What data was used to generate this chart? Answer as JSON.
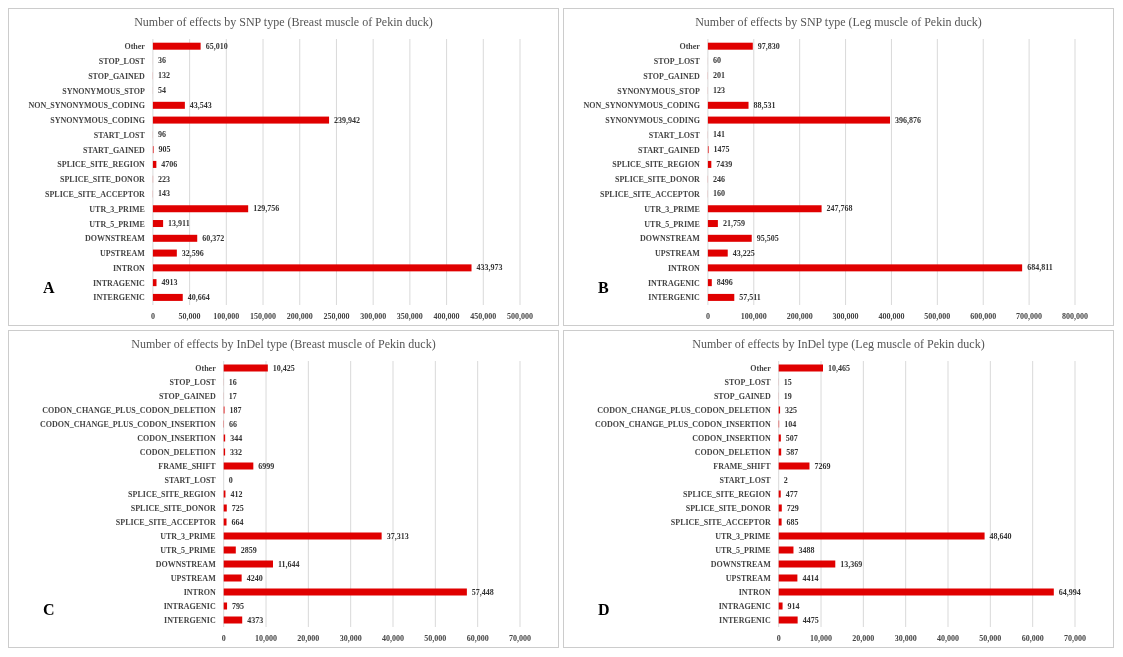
{
  "chart_data": [
    {
      "type": "bar",
      "orientation": "horizontal",
      "title": "Number of effects by SNP type (Breast muscle of Pekin duck)",
      "annotations": [
        "A"
      ],
      "categories": [
        "Other",
        "STOP_LOST",
        "STOP_GAINED",
        "SYNONYMOUS_STOP",
        "NON_SYNONYMOUS_CODING",
        "SYNONYMOUS_CODING",
        "START_LOST",
        "START_GAINED",
        "SPLICE_SITE_REGION",
        "SPLICE_SITE_DONOR",
        "SPLICE_SITE_ACCEPTOR",
        "UTR_3_PRIME",
        "UTR_5_PRIME",
        "DOWNSTREAM",
        "UPSTREAM",
        "INTRON",
        "INTRAGENIC",
        "INTERGENIC"
      ],
      "values": [
        65010,
        36,
        132,
        54,
        43543,
        239942,
        96,
        905,
        4706,
        223,
        143,
        129756,
        13911,
        60372,
        32596,
        433973,
        4913,
        40664
      ],
      "value_labels": [
        "65,010",
        "36",
        "132",
        "54",
        "43,543",
        "239,942",
        "96",
        "905",
        "4706",
        "223",
        "143",
        "129,756",
        "13,911",
        "60,372",
        "32,596",
        "433,973",
        "4913",
        "40,664"
      ],
      "color": "#e00000",
      "xlim": [
        0,
        500000
      ],
      "xticks": [
        {
          "value": 0,
          "label": "0"
        },
        {
          "value": 50000,
          "label": "50,000"
        },
        {
          "value": 100000,
          "label": "100,000"
        },
        {
          "value": 150000,
          "label": "150,000"
        },
        {
          "value": 200000,
          "label": "200,000"
        },
        {
          "value": 250000,
          "label": "250,000"
        },
        {
          "value": 300000,
          "label": "300,000"
        },
        {
          "value": 350000,
          "label": "350,000"
        },
        {
          "value": 400000,
          "label": "400,000"
        },
        {
          "value": 450000,
          "label": "450,000"
        },
        {
          "value": 500000,
          "label": "500,000"
        }
      ],
      "grid": "x"
    },
    {
      "type": "bar",
      "orientation": "horizontal",
      "title": "Number of effects by SNP type (Leg muscle of Pekin duck)",
      "annotations": [
        "B"
      ],
      "categories": [
        "Other",
        "STOP_LOST",
        "STOP_GAINED",
        "SYNONYMOUS_STOP",
        "NON_SYNONYMOUS_CODING",
        "SYNONYMOUS_CODING",
        "START_LOST",
        "START_GAINED",
        "SPLICE_SITE_REGION",
        "SPLICE_SITE_DONOR",
        "SPLICE_SITE_ACCEPTOR",
        "UTR_3_PRIME",
        "UTR_5_PRIME",
        "DOWNSTREAM",
        "UPSTREAM",
        "INTRON",
        "INTRAGENIC",
        "INTERGENIC"
      ],
      "values": [
        97830,
        60,
        201,
        123,
        88531,
        396876,
        141,
        1475,
        7439,
        246,
        160,
        247768,
        21759,
        95505,
        43225,
        684811,
        8496,
        57511
      ],
      "value_labels": [
        "97,830",
        "60",
        "201",
        "123",
        "88,531",
        "396,876",
        "141",
        "1475",
        "7439",
        "246",
        "160",
        "247,768",
        "21,759",
        "95,505",
        "43,225",
        "684,811",
        "8496",
        "57,511"
      ],
      "color": "#e00000",
      "xlim": [
        0,
        800000
      ],
      "xticks": [
        {
          "value": 0,
          "label": "0"
        },
        {
          "value": 100000,
          "label": "100,000"
        },
        {
          "value": 200000,
          "label": "200,000"
        },
        {
          "value": 300000,
          "label": "300,000"
        },
        {
          "value": 400000,
          "label": "400,000"
        },
        {
          "value": 500000,
          "label": "500,000"
        },
        {
          "value": 600000,
          "label": "600,000"
        },
        {
          "value": 700000,
          "label": "700,000"
        },
        {
          "value": 800000,
          "label": "800,000"
        }
      ],
      "grid": "x"
    },
    {
      "type": "bar",
      "orientation": "horizontal",
      "title": "Number of effects by InDel type (Breast muscle of Pekin duck)",
      "annotations": [
        "C"
      ],
      "categories": [
        "Other",
        "STOP_LOST",
        "STOP_GAINED",
        "CODON_CHANGE_PLUS_CODON_DELETION",
        "CODON_CHANGE_PLUS_CODON_INSERTION",
        "CODON_INSERTION",
        "CODON_DELETION",
        "FRAME_SHIFT",
        "START_LOST",
        "SPLICE_SITE_REGION",
        "SPLICE_SITE_DONOR",
        "SPLICE_SITE_ACCEPTOR",
        "UTR_3_PRIME",
        "UTR_5_PRIME",
        "DOWNSTREAM",
        "UPSTREAM",
        "INTRON",
        "INTRAGENIC",
        "INTERGENIC"
      ],
      "values": [
        10425,
        16,
        17,
        187,
        66,
        344,
        332,
        6999,
        0,
        412,
        725,
        664,
        37313,
        2859,
        11644,
        4240,
        57448,
        795,
        4373
      ],
      "value_labels": [
        "10,425",
        "16",
        "17",
        "187",
        "66",
        "344",
        "332",
        "6999",
        "0",
        "412",
        "725",
        "664",
        "37,313",
        "2859",
        "11,644",
        "4240",
        "57,448",
        "795",
        "4373"
      ],
      "color": "#e00000",
      "xlim": [
        0,
        70000
      ],
      "xticks": [
        {
          "value": 0,
          "label": "0"
        },
        {
          "value": 10000,
          "label": "10,000"
        },
        {
          "value": 20000,
          "label": "20,000"
        },
        {
          "value": 30000,
          "label": "30,000"
        },
        {
          "value": 40000,
          "label": "40,000"
        },
        {
          "value": 50000,
          "label": "50,000"
        },
        {
          "value": 60000,
          "label": "60,000"
        },
        {
          "value": 70000,
          "label": "70,000"
        }
      ],
      "grid": "x"
    },
    {
      "type": "bar",
      "orientation": "horizontal",
      "title": "Number of effects by InDel type (Leg muscle of Pekin duck)",
      "annotations": [
        "D"
      ],
      "categories": [
        "Other",
        "STOP_LOST",
        "STOP_GAINED",
        "CODON_CHANGE_PLUS_CODON_DELETION",
        "CODON_CHANGE_PLUS_CODON_INSERTION",
        "CODON_INSERTION",
        "CODON_DELETION",
        "FRAME_SHIFT",
        "START_LOST",
        "SPLICE_SITE_REGION",
        "SPLICE_SITE_DONOR",
        "SPLICE_SITE_ACCEPTOR",
        "UTR_3_PRIME",
        "UTR_5_PRIME",
        "DOWNSTREAM",
        "UPSTREAM",
        "INTRON",
        "INTRAGENIC",
        "INTERGENIC"
      ],
      "values": [
        10465,
        15,
        19,
        325,
        104,
        507,
        587,
        7269,
        2,
        477,
        729,
        685,
        48640,
        3488,
        13369,
        4414,
        64994,
        914,
        4475
      ],
      "value_labels": [
        "10,465",
        "15",
        "19",
        "325",
        "104",
        "507",
        "587",
        "7269",
        "2",
        "477",
        "729",
        "685",
        "48,640",
        "3488",
        "13,369",
        "4414",
        "64,994",
        "914",
        "4475"
      ],
      "color": "#e00000",
      "xlim": [
        0,
        70000
      ],
      "xticks": [
        {
          "value": 0,
          "label": "0"
        },
        {
          "value": 10000,
          "label": "10,000"
        },
        {
          "value": 20000,
          "label": "20,000"
        },
        {
          "value": 30000,
          "label": "30,000"
        },
        {
          "value": 40000,
          "label": "40,000"
        },
        {
          "value": 50000,
          "label": "50,000"
        },
        {
          "value": 60000,
          "label": "60,000"
        },
        {
          "value": 70000,
          "label": "70,000"
        }
      ],
      "grid": "x"
    }
  ]
}
